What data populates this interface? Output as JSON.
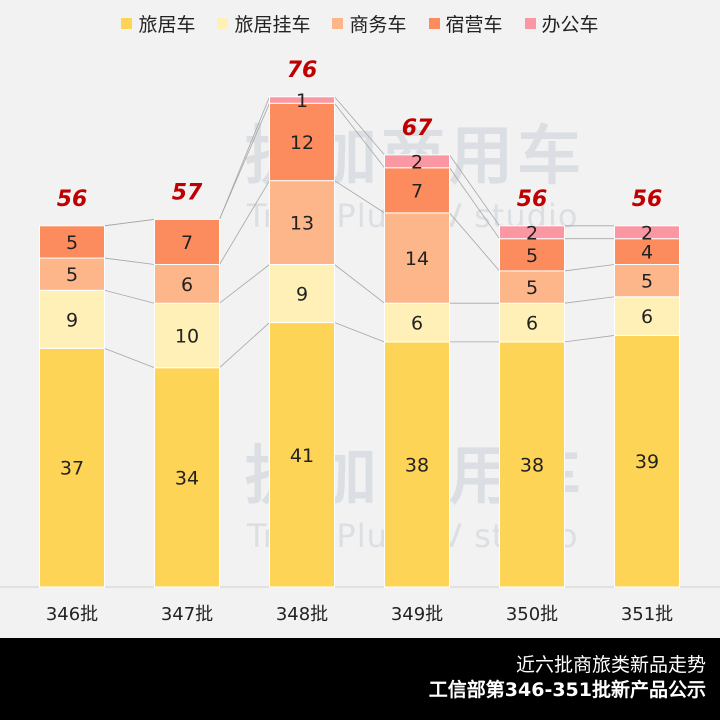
{
  "chart_data": {
    "type": "bar",
    "stacked": true,
    "categories": [
      "346批",
      "347批",
      "348批",
      "349批",
      "350批",
      "351批"
    ],
    "series": [
      {
        "name": "旅居车",
        "color": "#FED456",
        "values": [
          37,
          34,
          41,
          38,
          38,
          39
        ]
      },
      {
        "name": "旅居挂车",
        "color": "#FFF0B8",
        "values": [
          9,
          10,
          9,
          6,
          6,
          6
        ]
      },
      {
        "name": "商务车",
        "color": "#FDB68A",
        "values": [
          5,
          6,
          13,
          14,
          5,
          5
        ]
      },
      {
        "name": "宿营车",
        "color": "#FC8C5E",
        "values": [
          5,
          7,
          12,
          7,
          5,
          4
        ]
      },
      {
        "name": "办公车",
        "color": "#FA97A3",
        "values": [
          0,
          0,
          1,
          2,
          2,
          2
        ]
      }
    ],
    "totals": [
      56,
      57,
      76,
      67,
      56,
      56
    ],
    "total_label_color": "#C00000",
    "ylim": [
      0,
      80
    ],
    "grid": false,
    "legend": "top"
  },
  "watermark": {
    "cn": "提加商用车",
    "en": "TruckPlus CV studio"
  },
  "footer": {
    "line1": "近六批商旅类新品走势",
    "line2": "工信部第346-351批新产品公示"
  }
}
